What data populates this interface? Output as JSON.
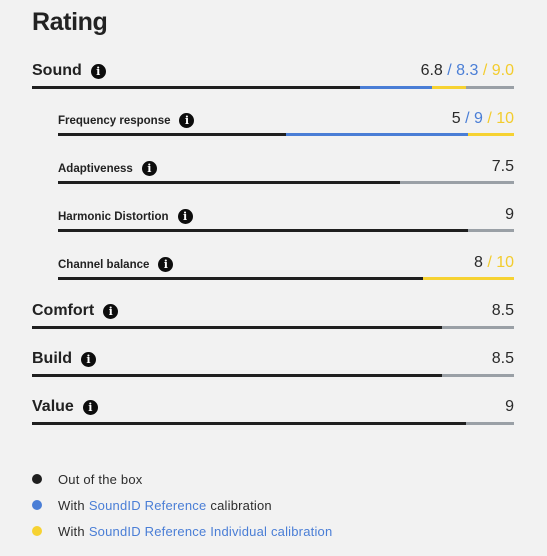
{
  "title": "Rating",
  "colors": {
    "ootb": "#1f1f1f",
    "reference": "#4a7ed6",
    "individual": "#f6d232",
    "track": "#9aa0a6"
  },
  "info_icon": "info-icon",
  "scale_max": 10,
  "rows": [
    {
      "label": "Sound",
      "level": "main",
      "ootb": "6.8",
      "ref": "/ 8.3",
      "ind": "/ 9.0",
      "ootb_val": 6.8,
      "ref_val": 8.3,
      "ind_val": 9.0
    },
    {
      "label": "Frequency response",
      "level": "sub",
      "ootb": "5",
      "ref": "/ 9",
      "ind": "/ 10",
      "ootb_val": 5,
      "ref_val": 9,
      "ind_val": 10
    },
    {
      "label": "Adaptiveness",
      "level": "sub",
      "ootb": "7.5",
      "ootb_val": 7.5
    },
    {
      "label": "Harmonic Distortion",
      "level": "sub",
      "ootb": "9",
      "ootb_val": 9
    },
    {
      "label": "Channel balance",
      "level": "sub",
      "ootb": "8",
      "ind": "/ 10",
      "ootb_val": 8,
      "ind_val": 10
    },
    {
      "label": "Comfort",
      "level": "main",
      "ootb": "8.5",
      "ootb_val": 8.5
    },
    {
      "label": "Build",
      "level": "main",
      "ootb": "8.5",
      "ootb_val": 8.5
    },
    {
      "label": "Value",
      "level": "main",
      "ootb": "9",
      "ootb_val": 9
    }
  ],
  "legend": {
    "ootb": {
      "text": "Out of the box"
    },
    "reference": {
      "prefix": "With",
      "link": "SoundID Reference",
      "suffix": "calibration"
    },
    "individual": {
      "prefix": "With",
      "link": "SoundID Reference Individual calibration"
    }
  }
}
